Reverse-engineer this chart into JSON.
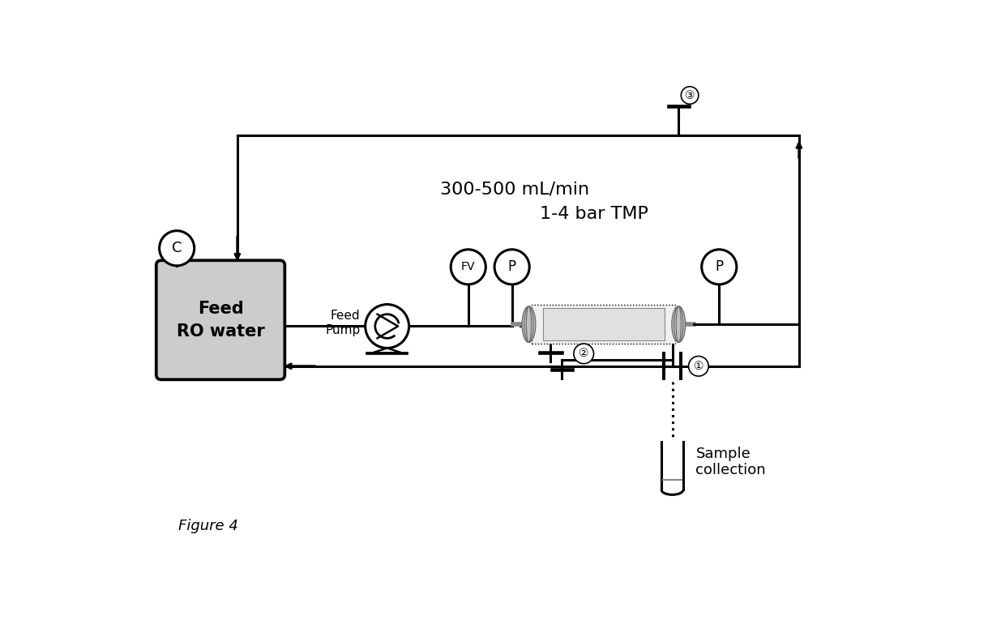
{
  "title": "Figure 4",
  "background_color": "#ffffff",
  "figsize": [
    12.4,
    7.81
  ],
  "dpi": 100,
  "text_300_500": "300-500 mL/min",
  "text_1_4_bar": "1-4 bar TMP",
  "text_feed_pump": "Feed\nPump",
  "text_feed_ro_line1": "Feed",
  "text_feed_ro_line2": "RO water",
  "text_sample": "Sample\ncollection",
  "label_C": "C",
  "label_FV": "FV",
  "label_P1": "P",
  "label_P2": "P",
  "circle_color": "#ffffff",
  "circle_edge": "#000000",
  "box_fill": "#cccccc",
  "box_edge": "#000000",
  "line_color": "#000000",
  "line_width": 2.2
}
